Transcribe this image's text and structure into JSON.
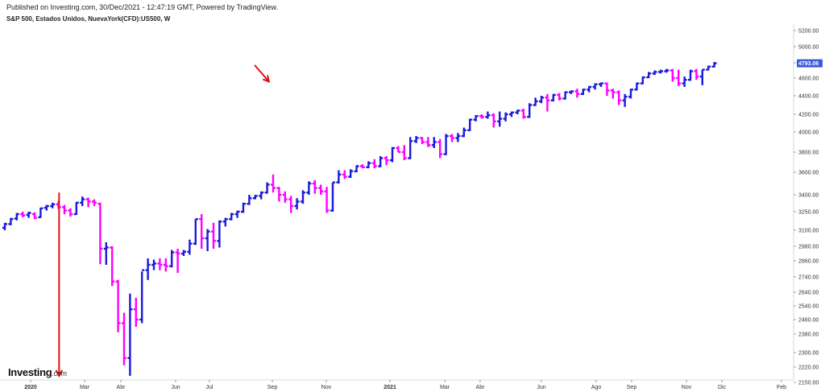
{
  "header": {
    "publish_line": "Published on Investing.com, 30/Dec/2021 - 12:47:19 GMT, Powered by TradingView.",
    "title": "S&P 500, Estados Unidos, NuevaYork(CFD):US500, W"
  },
  "logo": {
    "main": "Investing",
    "suffix": ".com"
  },
  "colors": {
    "up": "#1a1adc",
    "down": "#ff00ff",
    "annotation": "#e01010",
    "price_tag": "#3b5bdb",
    "axis": "#d8d8d8"
  },
  "chart_data": {
    "type": "ohlc",
    "title": "S&P 500, Estados Unidos, NuevaYork(CFD):US500, W",
    "ylim": [
      2100,
      5300
    ],
    "y_ticks": [
      "5200.00",
      "5000.00",
      "4800.00",
      "4600.00",
      "4400.00",
      "4200.00",
      "4000.00",
      "3800.00",
      "3600.00",
      "3400.00",
      "3250.00",
      "3100.00",
      "2980.00",
      "2860.00",
      "2740.00",
      "2640.00",
      "2540.00",
      "2460.00",
      "2380.00",
      "2300.00",
      "2220.00",
      "2150.00"
    ],
    "x_ticks": [
      "2020",
      "Mar",
      "Abr",
      "Jun",
      "Jul",
      "Sep",
      "Nov",
      "2021",
      "Mar",
      "Abr",
      "Jun",
      "Ago",
      "Sep",
      "Nov",
      "Dic",
      "Feb"
    ],
    "x_tick_bold": [
      "2020",
      "2021"
    ],
    "last_price": "4793.06",
    "grid": false,
    "bars": [
      [
        3120,
        3160,
        3100,
        3150
      ],
      [
        3150,
        3200,
        3140,
        3190
      ],
      [
        3195,
        3240,
        3180,
        3230
      ],
      [
        3230,
        3250,
        3205,
        3220
      ],
      [
        3225,
        3250,
        3200,
        3240
      ],
      [
        3230,
        3245,
        3190,
        3200
      ],
      [
        3205,
        3285,
        3200,
        3280
      ],
      [
        3285,
        3310,
        3260,
        3300
      ],
      [
        3300,
        3330,
        3280,
        3315
      ],
      [
        3315,
        3345,
        3275,
        3290
      ],
      [
        3290,
        3310,
        3230,
        3260
      ],
      [
        3260,
        3280,
        3210,
        3230
      ],
      [
        3230,
        3335,
        3225,
        3330
      ],
      [
        3330,
        3385,
        3300,
        3360
      ],
      [
        3360,
        3375,
        3290,
        3340
      ],
      [
        3340,
        3360,
        3300,
        3330
      ],
      [
        3320,
        3330,
        2835,
        2960
      ],
      [
        2960,
        3010,
        2830,
        2970
      ],
      [
        2970,
        2980,
        2680,
        2710
      ],
      [
        2710,
        2720,
        2390,
        2440
      ],
      [
        2440,
        2500,
        2230,
        2270
      ],
      [
        2270,
        2630,
        2180,
        2520
      ],
      [
        2520,
        2600,
        2420,
        2460
      ],
      [
        2460,
        2780,
        2440,
        2790
      ],
      [
        2790,
        2880,
        2720,
        2830
      ],
      [
        2830,
        2870,
        2790,
        2840
      ],
      [
        2840,
        2880,
        2790,
        2830
      ],
      [
        2830,
        2880,
        2780,
        2820
      ],
      [
        2820,
        2950,
        2810,
        2930
      ],
      [
        2930,
        2960,
        2770,
        2920
      ],
      [
        2920,
        2950,
        2900,
        2935
      ],
      [
        2935,
        3030,
        2910,
        3000
      ],
      [
        3000,
        3190,
        2990,
        3190
      ],
      [
        3190,
        3230,
        2960,
        3040
      ],
      [
        3040,
        3110,
        2940,
        3090
      ],
      [
        3090,
        3160,
        2960,
        3020
      ],
      [
        3020,
        3180,
        2970,
        3170
      ],
      [
        3170,
        3200,
        3130,
        3190
      ],
      [
        3190,
        3240,
        3180,
        3230
      ],
      [
        3230,
        3260,
        3200,
        3250
      ],
      [
        3250,
        3330,
        3240,
        3320
      ],
      [
        3320,
        3400,
        3310,
        3370
      ],
      [
        3370,
        3400,
        3360,
        3390
      ],
      [
        3390,
        3430,
        3360,
        3420
      ],
      [
        3420,
        3510,
        3410,
        3490
      ],
      [
        3490,
        3580,
        3420,
        3460
      ],
      [
        3460,
        3470,
        3340,
        3400
      ],
      [
        3400,
        3430,
        3330,
        3360
      ],
      [
        3360,
        3390,
        3240,
        3300
      ],
      [
        3300,
        3370,
        3270,
        3340
      ],
      [
        3340,
        3440,
        3320,
        3420
      ],
      [
        3420,
        3520,
        3400,
        3500
      ],
      [
        3500,
        3530,
        3410,
        3460
      ],
      [
        3460,
        3490,
        3400,
        3430
      ],
      [
        3430,
        3470,
        3240,
        3260
      ],
      [
        3260,
        3510,
        3250,
        3510
      ],
      [
        3510,
        3620,
        3500,
        3580
      ],
      [
        3580,
        3620,
        3540,
        3560
      ],
      [
        3560,
        3630,
        3550,
        3610
      ],
      [
        3610,
        3670,
        3600,
        3660
      ],
      [
        3660,
        3680,
        3640,
        3650
      ],
      [
        3650,
        3710,
        3640,
        3690
      ],
      [
        3690,
        3730,
        3640,
        3660
      ],
      [
        3660,
        3760,
        3650,
        3740
      ],
      [
        3740,
        3760,
        3670,
        3720
      ],
      [
        3720,
        3850,
        3700,
        3840
      ],
      [
        3840,
        3860,
        3800,
        3800
      ],
      [
        3800,
        3870,
        3720,
        3740
      ],
      [
        3740,
        3950,
        3730,
        3910
      ],
      [
        3910,
        3960,
        3890,
        3940
      ],
      [
        3940,
        3950,
        3880,
        3900
      ],
      [
        3900,
        3950,
        3850,
        3870
      ],
      [
        3870,
        3950,
        3840,
        3900
      ],
      [
        3900,
        3930,
        3740,
        3780
      ],
      [
        3780,
        3980,
        3770,
        3960
      ],
      [
        3960,
        3980,
        3900,
        3940
      ],
      [
        3940,
        3990,
        3900,
        3960
      ],
      [
        3960,
        4050,
        3950,
        4020
      ],
      [
        4020,
        4150,
        4010,
        4140
      ],
      [
        4140,
        4190,
        4120,
        4180
      ],
      [
        4180,
        4200,
        4150,
        4170
      ],
      [
        4170,
        4230,
        4150,
        4190
      ],
      [
        4190,
        4210,
        4050,
        4120
      ],
      [
        4120,
        4230,
        4060,
        4150
      ],
      [
        4150,
        4220,
        4120,
        4200
      ],
      [
        4200,
        4230,
        4170,
        4220
      ],
      [
        4220,
        4250,
        4200,
        4240
      ],
      [
        4240,
        4260,
        4150,
        4170
      ],
      [
        4170,
        4320,
        4160,
        4300
      ],
      [
        4300,
        4380,
        4290,
        4340
      ],
      [
        4340,
        4400,
        4320,
        4380
      ],
      [
        4380,
        4420,
        4230,
        4350
      ],
      [
        4350,
        4420,
        4340,
        4410
      ],
      [
        4410,
        4430,
        4350,
        4370
      ],
      [
        4370,
        4450,
        4360,
        4440
      ],
      [
        4440,
        4460,
        4420,
        4450
      ],
      [
        4450,
        4480,
        4380,
        4420
      ],
      [
        4420,
        4480,
        4410,
        4470
      ],
      [
        4470,
        4510,
        4440,
        4500
      ],
      [
        4500,
        4540,
        4470,
        4530
      ],
      [
        4530,
        4550,
        4500,
        4540
      ],
      [
        4540,
        4550,
        4400,
        4460
      ],
      [
        4460,
        4480,
        4370,
        4440
      ],
      [
        4440,
        4460,
        4300,
        4350
      ],
      [
        4350,
        4420,
        4280,
        4390
      ],
      [
        4390,
        4480,
        4370,
        4470
      ],
      [
        4470,
        4550,
        4460,
        4540
      ],
      [
        4540,
        4620,
        4530,
        4610
      ],
      [
        4610,
        4680,
        4600,
        4660
      ],
      [
        4660,
        4700,
        4640,
        4680
      ],
      [
        4680,
        4710,
        4660,
        4690
      ],
      [
        4690,
        4720,
        4670,
        4700
      ],
      [
        4700,
        4720,
        4560,
        4600
      ],
      [
        4600,
        4710,
        4510,
        4540
      ],
      [
        4540,
        4620,
        4500,
        4580
      ],
      [
        4580,
        4710,
        4570,
        4690
      ],
      [
        4690,
        4720,
        4580,
        4620
      ],
      [
        4620,
        4710,
        4520,
        4710
      ],
      [
        4710,
        4760,
        4700,
        4750
      ],
      [
        4750,
        4810,
        4740,
        4793
      ]
    ],
    "annotations": [
      {
        "type": "arrow",
        "from": [
          45.5,
          3420
        ],
        "to": [
          45.5,
          2180
        ],
        "color": "#e01010"
      },
      {
        "type": "arrow",
        "from": [
          209.5,
          4770
        ],
        "to": [
          221.5,
          4560
        ],
        "color": "#e01010"
      }
    ]
  }
}
